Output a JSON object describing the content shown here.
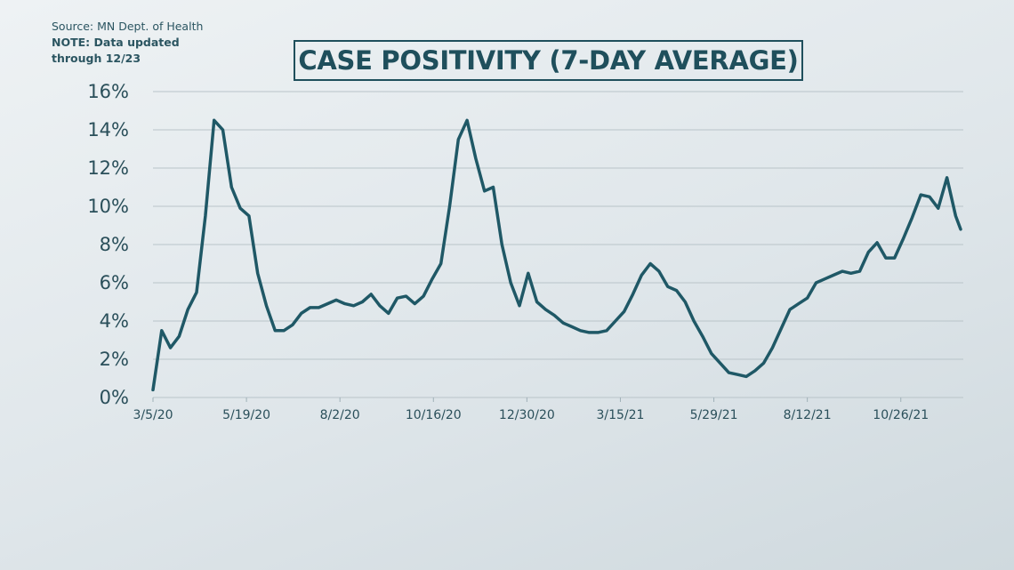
{
  "chart_data": {
    "type": "line",
    "title": "CASE POSITIVITY (7-DAY AVERAGE)",
    "source": "Source: MN Dept. of Health",
    "note": "NOTE: Data updated through 12/23",
    "x": [
      "3/5/20",
      "3/12/20",
      "3/19/20",
      "3/26/20",
      "4/2/20",
      "4/9/20",
      "4/16/20",
      "4/23/20",
      "4/30/20",
      "5/7/20",
      "5/14/20",
      "5/21/20",
      "5/28/20",
      "6/4/20",
      "6/11/20",
      "6/18/20",
      "6/25/20",
      "7/2/20",
      "7/9/20",
      "7/16/20",
      "7/23/20",
      "7/30/20",
      "8/6/20",
      "8/13/20",
      "8/20/20",
      "8/27/20",
      "9/3/20",
      "9/10/20",
      "9/17/20",
      "9/24/20",
      "10/1/20",
      "10/8/20",
      "10/15/20",
      "10/22/20",
      "10/29/20",
      "11/5/20",
      "11/12/20",
      "11/19/20",
      "11/26/20",
      "12/3/20",
      "12/10/20",
      "12/17/20",
      "12/24/20",
      "12/31/20",
      "1/7/21",
      "1/14/21",
      "1/21/21",
      "1/28/21",
      "2/4/21",
      "2/11/21",
      "2/18/21",
      "2/25/21",
      "3/4/21",
      "3/11/21",
      "3/18/21",
      "3/25/21",
      "4/1/21",
      "4/8/21",
      "4/15/21",
      "4/22/21",
      "4/29/21",
      "5/6/21",
      "5/13/21",
      "5/20/21",
      "5/27/21",
      "6/3/21",
      "6/10/21",
      "6/17/21",
      "6/24/21",
      "7/1/21",
      "7/8/21",
      "7/15/21",
      "7/22/21",
      "7/29/21",
      "8/5/21",
      "8/12/21",
      "8/19/21",
      "8/26/21",
      "9/2/21",
      "9/9/21",
      "9/16/21",
      "9/23/21",
      "9/30/21",
      "10/7/21",
      "10/14/21",
      "10/21/21",
      "10/28/21",
      "11/4/21",
      "11/11/21",
      "11/18/21",
      "11/25/21",
      "12/2/21",
      "12/9/21",
      "12/13/21"
    ],
    "series": [
      {
        "name": "Case positivity",
        "color": "#1f5866",
        "values": [
          0.4,
          3.5,
          2.6,
          3.2,
          4.6,
          5.5,
          9.5,
          14.5,
          14.0,
          11.0,
          9.9,
          9.5,
          6.5,
          4.8,
          3.5,
          3.5,
          3.8,
          4.4,
          4.7,
          4.7,
          4.9,
          5.1,
          4.9,
          4.8,
          5.0,
          5.4,
          4.8,
          4.4,
          5.2,
          5.3,
          4.9,
          5.3,
          6.2,
          7.0,
          10.0,
          13.5,
          14.5,
          12.5,
          10.8,
          11.0,
          8.0,
          6.0,
          4.8,
          6.5,
          5.0,
          4.6,
          4.3,
          3.9,
          3.7,
          3.5,
          3.4,
          3.4,
          3.5,
          4.0,
          4.5,
          5.4,
          6.4,
          7.0,
          6.6,
          5.8,
          5.6,
          5.0,
          4.0,
          3.2,
          2.3,
          1.8,
          1.3,
          1.2,
          1.1,
          1.4,
          1.8,
          2.6,
          3.6,
          4.6,
          4.9,
          5.2,
          6.0,
          6.2,
          6.4,
          6.6,
          6.5,
          6.6,
          7.6,
          8.1,
          7.3,
          7.3,
          8.3,
          9.4,
          10.6,
          10.5,
          9.9,
          11.5,
          9.5,
          8.8
        ]
      }
    ],
    "xlim": [
      "3/5/20",
      "12/13/21"
    ],
    "xticks": [
      "3/5/20",
      "5/19/20",
      "8/2/20",
      "10/16/20",
      "12/30/20",
      "3/15/21",
      "5/29/21",
      "8/12/21",
      "10/26/21"
    ],
    "ylim": [
      0,
      16
    ],
    "yticks": [
      {
        "value": 0,
        "label": "0%"
      },
      {
        "value": 2,
        "label": "2%"
      },
      {
        "value": 4,
        "label": "4%"
      },
      {
        "value": 6,
        "label": "6%"
      },
      {
        "value": 8,
        "label": "8%"
      },
      {
        "value": 10,
        "label": "10%"
      },
      {
        "value": 12,
        "label": "12%"
      },
      {
        "value": 14,
        "label": "14%"
      },
      {
        "value": 16,
        "label": "16%"
      }
    ],
    "grid": true
  }
}
